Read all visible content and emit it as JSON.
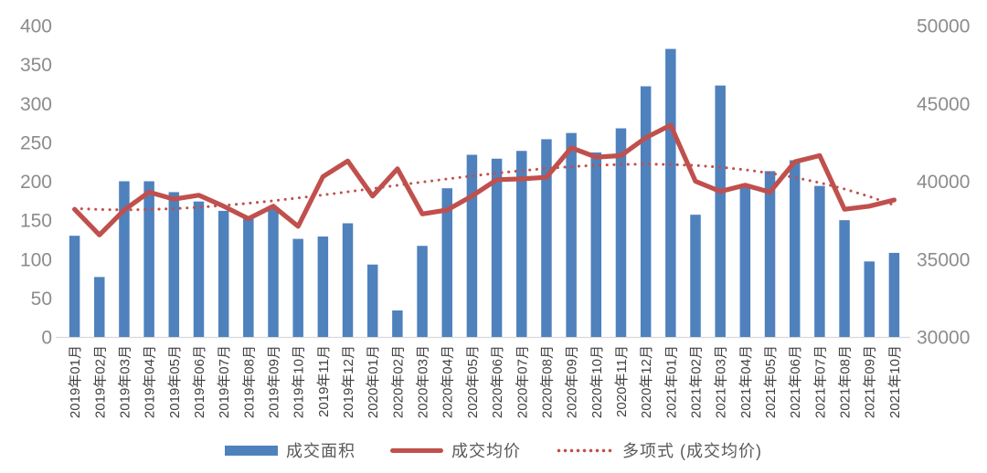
{
  "chart_data": {
    "type": "bar",
    "subtype": "combo-bar-line",
    "title": "",
    "grid": false,
    "legend_position": "bottom",
    "categories": [
      "2019年01月",
      "2019年02月",
      "2019年03月",
      "2019年04月",
      "2019年05月",
      "2019年06月",
      "2019年07月",
      "2019年08月",
      "2019年09月",
      "2019年10月",
      "2019年11月",
      "2019年12月",
      "2020年01月",
      "2020年02月",
      "2020年03月",
      "2020年04月",
      "2020年05月",
      "2020年06月",
      "2020年07月",
      "2020年08月",
      "2020年09月",
      "2020年10月",
      "2020年11月",
      "2020年12月",
      "2021年01月",
      "2021年02月",
      "2021年03月",
      "2021年04月",
      "2021年05月",
      "2021年06月",
      "2021年07月",
      "2021年08月",
      "2021年09月",
      "2021年10月"
    ],
    "series": [
      {
        "name": "成交面积",
        "type": "bar",
        "axis": "left",
        "color": "#4F81BD",
        "values": [
          130,
          77,
          200,
          200,
          186,
          174,
          162,
          154,
          166,
          126,
          129,
          146,
          93,
          34,
          117,
          191,
          234,
          229,
          239,
          254,
          262,
          237,
          268,
          322,
          370,
          157,
          323,
          192,
          213,
          227,
          194,
          150,
          97,
          108
        ]
      },
      {
        "name": "成交均价",
        "type": "line",
        "axis": "right",
        "color": "#C0504D",
        "values": [
          38200,
          36550,
          38150,
          39300,
          38850,
          39100,
          38400,
          37600,
          38400,
          37100,
          40300,
          41300,
          39050,
          40800,
          37900,
          38150,
          39050,
          40100,
          40150,
          40250,
          42150,
          41550,
          41650,
          42800,
          43600,
          40000,
          39350,
          39750,
          39300,
          41250,
          41650,
          38200,
          38400,
          38800
        ]
      },
      {
        "name": "多项式 (成交均价)",
        "type": "trendline",
        "axis": "right",
        "style": "dotted",
        "color": "#C0504D",
        "values": [
          38250,
          38185,
          38165,
          38185,
          38240,
          38330,
          38445,
          38585,
          38745,
          38925,
          39120,
          39320,
          39530,
          39740,
          39945,
          40145,
          40340,
          40520,
          40680,
          40820,
          40940,
          41025,
          41080,
          41100,
          41080,
          41015,
          40905,
          40740,
          40520,
          40245,
          39905,
          39500,
          39020,
          38470
        ]
      }
    ],
    "left_axis": {
      "min": 0,
      "max": 400,
      "step": 50,
      "tick_labels": [
        "0",
        "50",
        "100",
        "150",
        "200",
        "250",
        "300",
        "350",
        "400"
      ]
    },
    "right_axis": {
      "min": 30000,
      "max": 50000,
      "step": 5000,
      "tick_labels": [
        "30000",
        "35000",
        "40000",
        "45000",
        "50000"
      ]
    }
  },
  "legend": {
    "items": [
      "成交面积",
      "成交均价",
      "多项式 (成交均价)"
    ]
  },
  "colors": {
    "bar": "#4F81BD",
    "line": "#C0504D",
    "axis_number_text": "#8C8C8C",
    "category_text": "#404040",
    "legend_text": "#595959",
    "baseline": "#D9D9D9",
    "background": "#FFFFFF"
  }
}
